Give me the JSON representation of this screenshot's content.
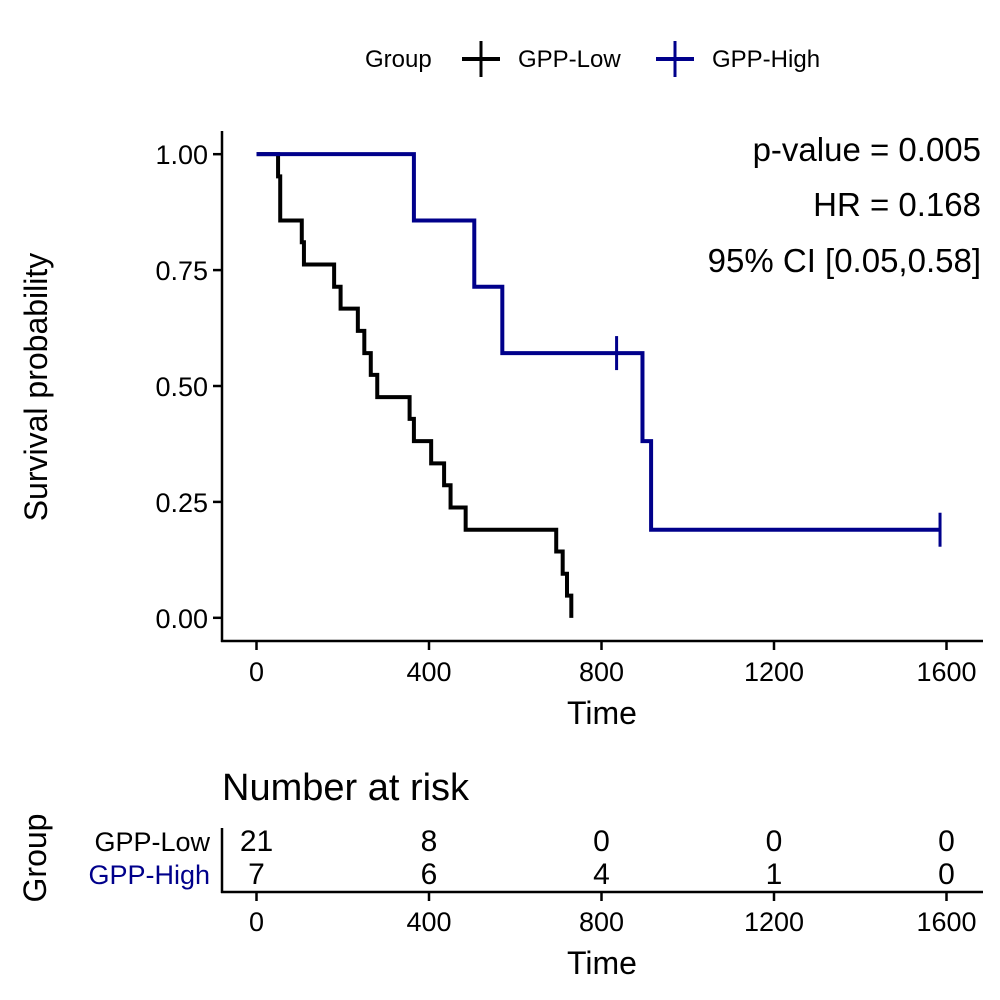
{
  "chart_data": [
    {
      "type": "line",
      "subtype": "kaplan-meier",
      "legend": {
        "title": "Group",
        "placement": "top",
        "entries": [
          "GPP-Low",
          "GPP-High"
        ]
      },
      "xlabel": "Time",
      "ylabel": "Survival probability",
      "xlim": [
        -80,
        1680
      ],
      "ylim": [
        -0.05,
        1.05
      ],
      "xticks": [
        0,
        400,
        800,
        1200,
        1600
      ],
      "xtick_labels": [
        "0",
        "400",
        "800",
        "1200",
        "1600"
      ],
      "yticks": [
        0,
        0.25,
        0.5,
        0.75,
        1.0
      ],
      "ytick_labels": [
        "0.00",
        "0.25",
        "0.50",
        "0.75",
        "1.00"
      ],
      "grid": false,
      "annotations": [
        "p-value = 0.005",
        "HR = 0.168",
        "95% CI [0.05,0.58]"
      ],
      "series": [
        {
          "name": "GPP-Low",
          "color": "#000000",
          "x": [
            0,
            50,
            55,
            105,
            110,
            180,
            195,
            235,
            250,
            265,
            280,
            355,
            365,
            405,
            435,
            450,
            485,
            695,
            710,
            720,
            730
          ],
          "y": [
            1.0,
            0.952,
            0.857,
            0.81,
            0.762,
            0.714,
            0.667,
            0.619,
            0.571,
            0.524,
            0.476,
            0.429,
            0.381,
            0.333,
            0.286,
            0.238,
            0.19,
            0.143,
            0.095,
            0.048,
            0.0
          ],
          "censored": []
        },
        {
          "name": "GPP-High",
          "color": "#00008B",
          "x": [
            0,
            365,
            505,
            570,
            895,
            915,
            1585
          ],
          "y": [
            1.0,
            0.857,
            0.714,
            0.571,
            0.381,
            0.19,
            0.19
          ],
          "censored": [
            [
              835,
              0.571
            ],
            [
              1585,
              0.19
            ]
          ]
        }
      ]
    },
    {
      "type": "table",
      "title": "Number at risk",
      "ylabel": "Group",
      "xlabel": "Time",
      "xlim": [
        -80,
        1680
      ],
      "xticks": [
        0,
        400,
        800,
        1200,
        1600
      ],
      "xtick_labels": [
        "0",
        "400",
        "800",
        "1200",
        "1600"
      ],
      "rows": [
        {
          "name": "GPP-Low",
          "color": "#000000",
          "values": [
            "21",
            "8",
            "0",
            "0",
            "0"
          ]
        },
        {
          "name": "GPP-High",
          "color": "#00008B",
          "values": [
            "7",
            "6",
            "4",
            "1",
            "0"
          ]
        }
      ]
    }
  ]
}
